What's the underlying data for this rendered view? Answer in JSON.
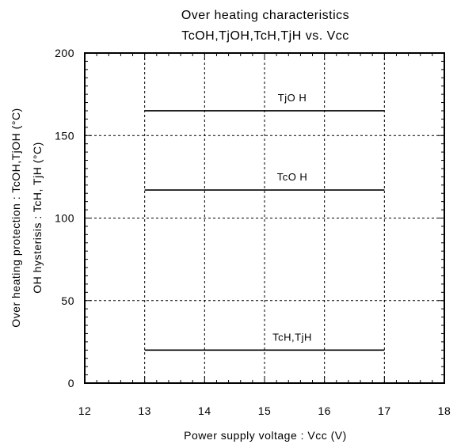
{
  "chart_data": {
    "type": "line",
    "title": "Over heating characteristics",
    "subtitle": "TcOH,TjOH,TcH,TjH vs. Vcc",
    "xlabel": "Power supply voltage : Vcc (V)",
    "ylabel": "Over heating protection : TcOH,TjOH (°C)",
    "ylabel2": "OH hysterisis : TcH, TjH (°C)",
    "xlim": [
      12,
      18
    ],
    "ylim": [
      0,
      200
    ],
    "x_ticks": [
      12,
      13,
      14,
      15,
      16,
      17,
      18
    ],
    "y_ticks": [
      0,
      50,
      100,
      150,
      200
    ],
    "grid": true,
    "series": [
      {
        "name": "TjOH",
        "x": [
          13,
          17
        ],
        "y": [
          165,
          165
        ]
      },
      {
        "name": "TcOH",
        "x": [
          13,
          17
        ],
        "y": [
          117,
          117
        ]
      },
      {
        "name": "TcH,TjH",
        "x": [
          13,
          17
        ],
        "y": [
          20,
          20
        ]
      }
    ],
    "annotations": [
      {
        "text": "TjO H",
        "series": 0
      },
      {
        "text": "TcO H",
        "series": 1
      },
      {
        "text": "TcH,TjH",
        "series": 2
      }
    ]
  }
}
